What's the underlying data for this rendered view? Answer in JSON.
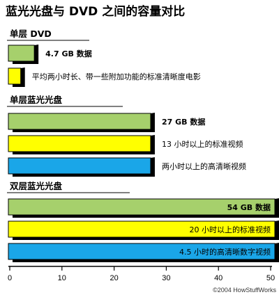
{
  "chart_data": {
    "type": "bar",
    "orientation": "horizontal",
    "title": "蓝光光盘与 DVD 之间的容量对比",
    "groups": [
      {
        "name": "单层 DVD",
        "bars": [
          {
            "value": 4.7,
            "label": "4.7 GB 数据",
            "bold": true,
            "color": "#a6d06c"
          },
          {
            "value": 2.1,
            "label": "平均两小时长、带一些附加功能的标准清晰度电影",
            "bold": false,
            "color": "#ffff00"
          }
        ]
      },
      {
        "name": "单层蓝光光盘",
        "bars": [
          {
            "value": 27,
            "label": "27 GB 数据",
            "bold": true,
            "color": "#a6d06c"
          },
          {
            "value": 27,
            "label": "13 小时以上的标准视频",
            "bold": false,
            "color": "#ffff00"
          },
          {
            "value": 27,
            "label": "两小时以上的高清晰视频",
            "bold": false,
            "color": "#1aa6e8"
          }
        ]
      },
      {
        "name": "双层蓝光光盘",
        "bars": [
          {
            "value": 54,
            "label": "54 GB 数据",
            "bold": true,
            "color": "#a6d06c"
          },
          {
            "value": 54,
            "label": "20 小时以上的标准视频",
            "bold": false,
            "color": "#ffff00"
          },
          {
            "value": 54,
            "label": "4.5 小时的高清晰数字视频",
            "bold": false,
            "color": "#1aa6e8"
          }
        ]
      }
    ],
    "xlim": [
      0,
      50
    ],
    "xticks": [
      0,
      10,
      20,
      30,
      40,
      50
    ],
    "grid": false,
    "copyright": "©2004 HowStuffWorks"
  }
}
